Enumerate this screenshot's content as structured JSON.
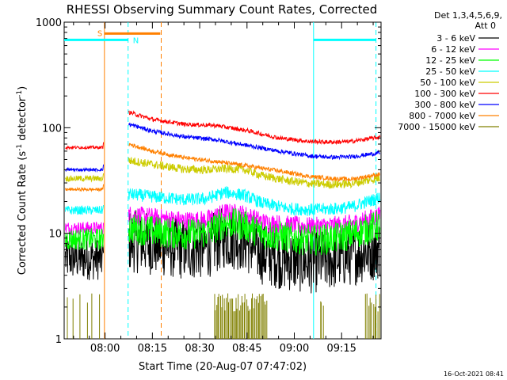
{
  "chart_data": {
    "type": "line",
    "title": "RHESSI Observing Summary Count Rates, Corrected",
    "xlabel": "Start Time (20-Aug-07 07:47:02)",
    "ylabel": "Corrected Count Rate (s",
    "ylabel_sup1": "-1",
    "ylabel_mid": " detector",
    "ylabel_sup2": "-1",
    "ylabel_end": ")",
    "timestamp": "16-Oct-2021 08:41",
    "y_scale": "log",
    "ylim": [
      1,
      1000
    ],
    "xlim_minutes": [
      467.03,
      567.5
    ],
    "x_ticks": [
      {
        "label": "08:00",
        "minutes": 480
      },
      {
        "label": "08:15",
        "minutes": 495
      },
      {
        "label": "08:30",
        "minutes": 510
      },
      {
        "label": "08:45",
        "minutes": 525
      },
      {
        "label": "09:00",
        "minutes": 540
      },
      {
        "label": "09:15",
        "minutes": 555
      }
    ],
    "y_tick_labels": [
      {
        "label": "1",
        "value": 1
      },
      {
        "label": "10",
        "value": 10
      },
      {
        "label": "100",
        "value": 100
      },
      {
        "label": "1000",
        "value": 1000
      }
    ],
    "legend_header": [
      "Det 1,3,4,5,6,9,",
      "Att 0"
    ],
    "legend_placement": "right",
    "flags": [
      {
        "label": "S",
        "color": "#ff8000"
      },
      {
        "label": "N",
        "color": "#00ffff"
      }
    ],
    "gaps_minutes": [
      [
        479.5,
        487.5
      ]
    ],
    "series": [
      {
        "name": "3 - 6 keV",
        "color": "#000000",
        "pre": 5.8,
        "knots": [
          [
            487.5,
            8.5
          ],
          [
            497,
            7.8
          ],
          [
            505,
            7.1
          ],
          [
            512,
            7.3
          ],
          [
            518,
            9.2
          ],
          [
            524,
            8.6
          ],
          [
            530,
            6.4
          ],
          [
            538,
            5.6
          ],
          [
            545,
            5.3
          ],
          [
            552,
            5.7
          ],
          [
            558,
            6.3
          ],
          [
            567.5,
            7.3
          ]
        ],
        "noise": 0.3
      },
      {
        "name": "6 - 12 keV",
        "color": "#ff00ff",
        "pre": 11.2,
        "knots": [
          [
            487.5,
            15.0
          ],
          [
            497,
            14.0
          ],
          [
            505,
            13.2
          ],
          [
            512,
            13.4
          ],
          [
            518,
            15.8
          ],
          [
            524,
            15.2
          ],
          [
            530,
            12.8
          ],
          [
            538,
            12.0
          ],
          [
            545,
            11.6
          ],
          [
            552,
            11.8
          ],
          [
            558,
            12.3
          ],
          [
            567.5,
            14.8
          ]
        ],
        "noise": 0.09
      },
      {
        "name": "12 - 25 keV",
        "color": "#00ff00",
        "pre": 8.8,
        "knots": [
          [
            487.5,
            11.2
          ],
          [
            497,
            10.3
          ],
          [
            505,
            9.8
          ],
          [
            512,
            10.1
          ],
          [
            518,
            12.6
          ],
          [
            524,
            11.9
          ],
          [
            530,
            9.9
          ],
          [
            538,
            9.1
          ],
          [
            545,
            8.6
          ],
          [
            552,
            8.9
          ],
          [
            558,
            9.7
          ],
          [
            567.5,
            12.0
          ]
        ],
        "noise": 0.15
      },
      {
        "name": "25 - 50 keV",
        "color": "#00ffff",
        "pre": 16.5,
        "knots": [
          [
            487.5,
            23.5
          ],
          [
            497,
            22.0
          ],
          [
            505,
            20.8
          ],
          [
            512,
            21.2
          ],
          [
            518,
            24.5
          ],
          [
            524,
            23.0
          ],
          [
            530,
            19.2
          ],
          [
            538,
            17.2
          ],
          [
            545,
            16.7
          ],
          [
            552,
            17.0
          ],
          [
            558,
            17.7
          ],
          [
            567.5,
            22.0
          ]
        ],
        "noise": 0.06
      },
      {
        "name": "50 - 100 keV",
        "color": "#cccc00",
        "pre": 33.0,
        "knots": [
          [
            487.5,
            49.0
          ],
          [
            497,
            44.0
          ],
          [
            505,
            40.5
          ],
          [
            512,
            39.8
          ],
          [
            518,
            41.0
          ],
          [
            524,
            40.2
          ],
          [
            530,
            35.0
          ],
          [
            538,
            31.5
          ],
          [
            545,
            29.6
          ],
          [
            552,
            29.0
          ],
          [
            558,
            29.5
          ],
          [
            567.5,
            33.5
          ]
        ],
        "noise": 0.04
      },
      {
        "name": "100 - 300 keV",
        "color": "#ff0000",
        "pre": 65.0,
        "knots": [
          [
            487.5,
            140.0
          ],
          [
            495,
            120.0
          ],
          [
            505,
            108.0
          ],
          [
            515,
            105.0
          ],
          [
            525,
            94.0
          ],
          [
            535,
            80.0
          ],
          [
            545,
            74.0
          ],
          [
            552,
            73.0
          ],
          [
            558,
            74.0
          ],
          [
            567.5,
            82.0
          ]
        ],
        "noise": 0.02
      },
      {
        "name": "300 - 800 keV",
        "color": "#0000ff",
        "pre": 40.0,
        "knots": [
          [
            487.5,
            108.0
          ],
          [
            495,
            93.0
          ],
          [
            505,
            82.0
          ],
          [
            515,
            77.0
          ],
          [
            525,
            68.0
          ],
          [
            535,
            60.0
          ],
          [
            545,
            54.0
          ],
          [
            552,
            52.5
          ],
          [
            558,
            53.0
          ],
          [
            567.5,
            58.0
          ]
        ],
        "noise": 0.02
      },
      {
        "name": "800 - 7000 keV",
        "color": "#ff8000",
        "pre": 26.0,
        "knots": [
          [
            487.5,
            70.0
          ],
          [
            495,
            60.0
          ],
          [
            505,
            52.0
          ],
          [
            515,
            48.0
          ],
          [
            525,
            43.5
          ],
          [
            535,
            39.0
          ],
          [
            545,
            34.5
          ],
          [
            552,
            33.0
          ],
          [
            558,
            32.5
          ],
          [
            567.5,
            36.5
          ]
        ],
        "noise": 0.02
      },
      {
        "name": "7000 - 15000 keV",
        "color": "#808000",
        "pre": 0,
        "knots": [],
        "noise": 0
      }
    ],
    "events": [
      {
        "type": "orange-solid",
        "color": "#ff8000",
        "minutes": 479.8
      },
      {
        "type": "cyan-dashed",
        "color": "#00ffff",
        "minutes": 487.3
      },
      {
        "type": "orange-dashed",
        "color": "#ff8000",
        "minutes": 497.8
      },
      {
        "type": "cyan-solid",
        "color": "#00ffff",
        "minutes": 546.1
      },
      {
        "type": "cyan-dashed",
        "color": "#00ffff",
        "minutes": 565.9
      }
    ],
    "flag_segments": [
      {
        "label": "S",
        "color": "#ff8000",
        "from": 479.8,
        "to": 497.5,
        "y_value": 780
      },
      {
        "label": "N",
        "color": "#00ffff",
        "from": 467.03,
        "to": 487.3,
        "y_value": 680
      },
      {
        "label": "N",
        "color": "#00ffff",
        "from": 546.1,
        "to": 565.9,
        "y_value": 680
      }
    ],
    "attenuator_spikes": [
      {
        "from": 467.5,
        "to": 479.3,
        "density": 6
      },
      {
        "from": 514.5,
        "to": 531.5,
        "density": 45
      },
      {
        "from": 548.0,
        "to": 549.5,
        "density": 3
      },
      {
        "from": 562.5,
        "to": 567.3,
        "density": 10
      }
    ]
  }
}
